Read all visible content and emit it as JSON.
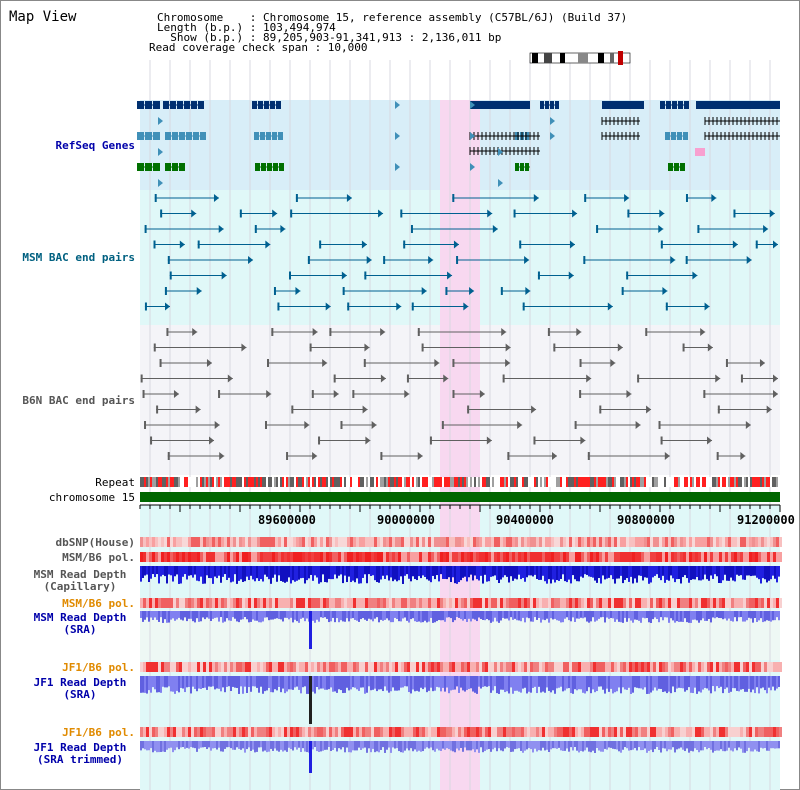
{
  "title": "Map View",
  "header": {
    "chromosome_label": "Chromosome    : Chromosome 15, reference assembly (C57BL/6J) (Build 37)",
    "length_label": "Length (b.p.) : 103,494,974",
    "show_label": "  Show (b.p.) : 89,205,903-91,341,913 : 2,136,011 bp",
    "coverage_label": "Read coverage check span : 10,000"
  },
  "tracks": {
    "refseq": "RefSeq Genes",
    "msm_bac": "MSM BAC end pairs",
    "b6n_bac": "B6N BAC end pairs",
    "repeat": "Repeat",
    "chromosome": "chromosome 15",
    "dbsnp": "dbSNP(House)",
    "msm_b6_pol_1": "MSM/B6 pol.",
    "msm_read_depth_cap_1": "MSM Read Depth",
    "msm_read_depth_cap_2": "(Capillary)",
    "msm_b6_pol_2": "MSM/B6 pol.",
    "msm_read_depth_sra_1": "MSM Read Depth",
    "msm_read_depth_sra_2": "(SRA)",
    "jf1_b6_pol_1": "JF1/B6 pol.",
    "jf1_read_depth_sra_1": "JF1 Read Depth",
    "jf1_read_depth_sra_2": "(SRA)",
    "jf1_b6_pol_2": "JF1/B6 pol.",
    "jf1_read_depth_trim_1": "JF1 Read Depth",
    "jf1_read_depth_trim_2": "(SRA trimmed)"
  },
  "axis": {
    "ticks": [
      "89600000",
      "90000000",
      "90400000",
      "90800000",
      "91200000"
    ]
  },
  "colors": {
    "refseq_bg": "#d8eef8",
    "msm_bg": "#e0f8f8",
    "b6n_bg": "#f4f4f8",
    "highlight": "#f8d8f0",
    "chromosome_bar": "#006600",
    "refseq_dark": "#003070",
    "refseq_mid": "#4090b8",
    "refseq_green": "#007000",
    "bac_teal": "#006090",
    "bac_gray": "#606060",
    "depth_blue": "#2020e0",
    "depth_light": "#8080f0",
    "pol_red": "#f03030",
    "pol_pink": "#f8b0b0"
  }
}
